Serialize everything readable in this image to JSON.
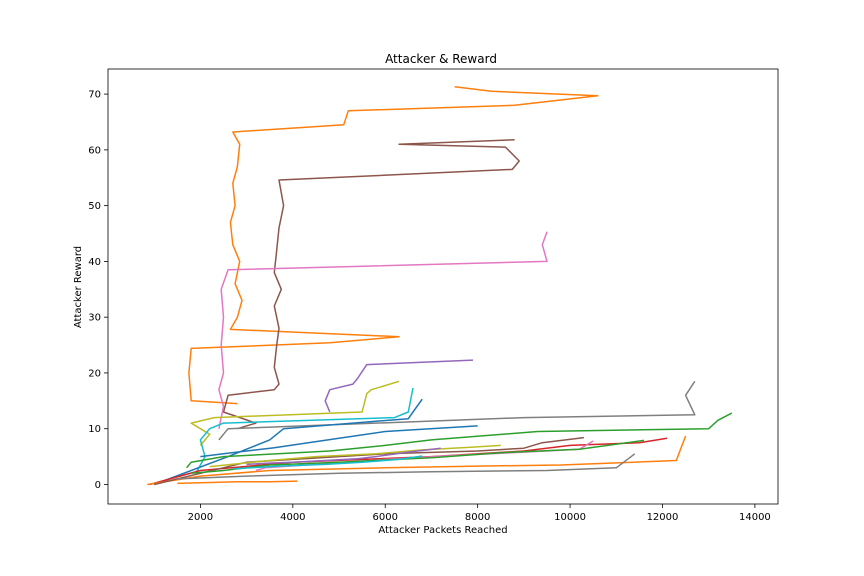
{
  "chart_data": {
    "type": "line",
    "title": "Attacker & Reward",
    "xlabel": "Attacker Packets Reached",
    "ylabel": "Attacker Reward",
    "xlim": [
      0,
      14500
    ],
    "ylim": [
      -3.5,
      74.5
    ],
    "xticks": [
      2000,
      4000,
      6000,
      8000,
      10000,
      12000,
      14000
    ],
    "yticks": [
      0,
      10,
      20,
      30,
      40,
      50,
      60,
      70
    ],
    "grid": false,
    "legend": "none",
    "series": [
      {
        "color": "#ff7f0e",
        "x": [
          7500,
          8300,
          10600,
          8800,
          5200,
          5100,
          2700,
          2850,
          2800,
          2700,
          2750,
          2650,
          2700,
          2850,
          2750,
          2900,
          2800,
          2650,
          6300,
          4800,
          1800,
          1750,
          1800,
          2800
        ],
        "y": [
          71.3,
          70.5,
          69.7,
          68,
          67,
          64.5,
          63.2,
          61,
          57,
          54,
          50,
          47,
          43,
          40,
          36,
          33,
          30,
          27.8,
          26.5,
          25.4,
          24.4,
          20,
          15,
          14.5
        ]
      },
      {
        "color": "#8c564b",
        "x": [
          8800,
          6300,
          8600,
          8900,
          8750,
          3700,
          3800,
          3700,
          3650,
          3600,
          3750,
          3600,
          3700,
          3650,
          3600,
          3700,
          3600,
          2600,
          2500,
          3200,
          2800
        ],
        "y": [
          61.8,
          61,
          60.5,
          58,
          56.5,
          54.6,
          50,
          46,
          42,
          38,
          35,
          32,
          28,
          25,
          21,
          18,
          17,
          16,
          13,
          11,
          10
        ]
      },
      {
        "color": "#e377c2",
        "x": [
          9500,
          9400,
          9500,
          2600,
          2450,
          2500,
          2450,
          2500,
          2400,
          2500,
          2450,
          2400
        ],
        "y": [
          45.3,
          43,
          40,
          38.5,
          35,
          30,
          25,
          20,
          17,
          14,
          12,
          10
        ]
      },
      {
        "color": "#9467bd",
        "x": [
          7900,
          5600,
          5400,
          5300,
          4800,
          4700,
          4800
        ],
        "y": [
          22.3,
          21.5,
          19,
          18,
          17,
          15,
          13
        ]
      },
      {
        "color": "#bcbd22",
        "x": [
          6300,
          5700,
          5600,
          5500,
          2300,
          1800,
          2200,
          2000
        ],
        "y": [
          18.5,
          17,
          16.3,
          13,
          12,
          11,
          9,
          7
        ]
      },
      {
        "color": "#7f7f7f",
        "x": [
          12700,
          12500,
          12700,
          9000,
          2600,
          2500,
          2400
        ],
        "y": [
          18.5,
          16,
          12.5,
          12,
          10,
          9,
          8
        ]
      },
      {
        "color": "#17becf",
        "x": [
          6600,
          6500,
          6200,
          2500,
          2200,
          2000,
          2100,
          1900
        ],
        "y": [
          17.3,
          13,
          12,
          11,
          10,
          8,
          5,
          2
        ]
      },
      {
        "color": "#1f77b4",
        "x": [
          6800,
          6600,
          6500,
          3800,
          3500,
          2600,
          1000
        ],
        "y": [
          15.3,
          13,
          11.8,
          10,
          8,
          5,
          0
        ]
      },
      {
        "color": "#2ca02c",
        "x": [
          13500,
          13200,
          13000,
          9300,
          7000,
          6000,
          4800,
          2500,
          1800,
          1700
        ],
        "y": [
          12.8,
          11.5,
          10,
          9.5,
          8,
          7,
          6,
          5,
          4,
          3
        ]
      },
      {
        "color": "#d62728",
        "x": [
          12100,
          11500,
          10000,
          9000,
          7000,
          4000,
          2000,
          900
        ],
        "y": [
          8.3,
          7.5,
          7,
          6,
          5,
          4,
          2.5,
          0
        ]
      },
      {
        "color": "#ff7f0e",
        "x": [
          12500,
          12300,
          10800,
          9800,
          8000,
          6000,
          3500,
          2000,
          850
        ],
        "y": [
          8.7,
          4.3,
          3.8,
          3.5,
          3.3,
          3,
          2.5,
          1.5,
          0
        ]
      },
      {
        "color": "#8c564b",
        "x": [
          10300,
          9400,
          9000,
          8000,
          6000,
          3000,
          2000,
          1000
        ],
        "y": [
          8.4,
          7.5,
          6.5,
          6,
          5.5,
          4,
          2,
          0
        ]
      },
      {
        "color": "#1f77b4",
        "x": [
          8000,
          6000,
          5000,
          3600,
          2500,
          2000
        ],
        "y": [
          10.5,
          9.5,
          8.3,
          6.6,
          5.5,
          5
        ]
      },
      {
        "color": "#e377c2",
        "x": [
          10500,
          10200,
          9000,
          7500,
          6000,
          5200,
          3400,
          3200
        ],
        "y": [
          7.8,
          6.3,
          5.8,
          5.2,
          4.5,
          4,
          3,
          2.5
        ]
      },
      {
        "color": "#7f7f7f",
        "x": [
          11400,
          11000,
          9500,
          7000,
          5000,
          3000,
          1500
        ],
        "y": [
          5.5,
          3,
          2.5,
          2.3,
          2,
          1.5,
          1
        ]
      },
      {
        "color": "#2ca02c",
        "x": [
          11600,
          10200,
          8500,
          7000,
          5000,
          3500,
          2500,
          1800
        ],
        "y": [
          7.9,
          6.3,
          5.7,
          4.8,
          4,
          3.5,
          2.5,
          2
        ]
      },
      {
        "color": "#bcbd22",
        "x": [
          8500,
          7900,
          6800,
          5800,
          4500,
          3500,
          2200
        ],
        "y": [
          7,
          6.7,
          6.2,
          5.5,
          5,
          4.3,
          3.2
        ]
      },
      {
        "color": "#ff7f0e",
        "x": [
          4100,
          3500,
          2800,
          1500
        ],
        "y": [
          0.6,
          0.5,
          0.5,
          0.2
        ]
      },
      {
        "color": "#9467bd",
        "x": [
          7200,
          6500,
          5800,
          5400,
          4000,
          3400,
          3000
        ],
        "y": [
          6.5,
          5.8,
          5,
          4.6,
          4,
          3.8,
          3.6
        ]
      },
      {
        "color": "#17becf",
        "x": [
          6800,
          6300,
          5500,
          4700,
          3700,
          2700
        ],
        "y": [
          5.1,
          4.5,
          4,
          3.6,
          3.3,
          2.8
        ]
      }
    ]
  }
}
